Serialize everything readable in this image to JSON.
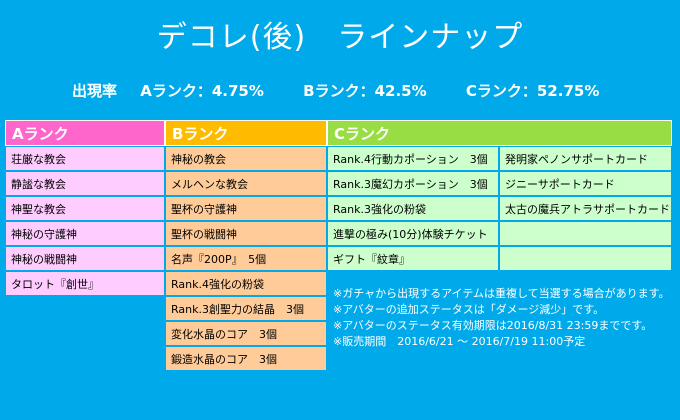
{
  "title": "デコレ(後)　ラインナップ",
  "rates": {
    "label": "出現率",
    "a": "Aランク：4.75%",
    "b": "Bランク：42.5%",
    "c": "Cランク：52.75%"
  },
  "rank_a": {
    "header": "Aランク",
    "items": [
      "荘厳な教会",
      "静謐な教会",
      "神聖な教会",
      "神秘の守護神",
      "神秘の戦闘神",
      "タロット『創世』"
    ]
  },
  "rank_b": {
    "header": "Bランク",
    "items": [
      "神秘の教会",
      "メルヘンな教会",
      "聖杯の守護神",
      "聖杯の戦闘神",
      "名声『200P』　5個",
      "Rank.4強化の粉袋",
      "Rank.3創聖力の結晶　3個",
      "変化水晶のコア　3個",
      "鍛造水晶のコア　3個"
    ]
  },
  "rank_c": {
    "header": "Cランク",
    "rows": [
      [
        "Rank.4行動カポーション　3個",
        "発明家ペノンサポートカード"
      ],
      [
        "Rank.3魔幻カポーション　3個",
        "ジニーサポートカード"
      ],
      [
        "Rank.3強化の粉袋",
        "太古の魔兵アトラサポートカード"
      ],
      [
        "進撃の極み(10分)体験チケット",
        ""
      ],
      [
        "ギフト『紋章』",
        ""
      ]
    ]
  },
  "notes": [
    "※ガチャから出現するアイテムは重複して当選する場合があります。",
    "※アバターの追加ステータスは「ダメージ減少」です。",
    "※アバターのステータス有効期限は2016/8/31 23:59までです。",
    "※販売期間　2016/6/21 ～ 2016/7/19 11:00予定"
  ],
  "colors": {
    "background": "#00aaea",
    "rank_a_header": "#ff66cc",
    "rank_a_cell": "#ffccff",
    "rank_b_header": "#ffbb00",
    "rank_b_cell": "#ffcc99",
    "rank_c_header": "#99dd44",
    "rank_c_cell": "#ccffcc"
  }
}
